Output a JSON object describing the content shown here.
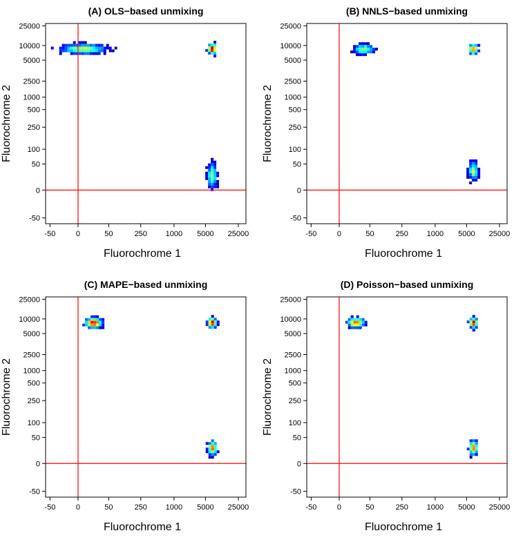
{
  "chart_data": [
    {
      "type": "heatmap",
      "title": "(A) OLS−based unmixing",
      "xlabel": "Fluorochrome 1",
      "ylabel": "Fluorochrome 2",
      "scale": "biexponential",
      "x_ticks": [
        "-50",
        "0",
        "50",
        "250",
        "1000",
        "5000",
        "25000"
      ],
      "y_ticks": [
        "-50",
        "0",
        "50",
        "100",
        "250",
        "500",
        "1000",
        "2500",
        "5000",
        "10000",
        "25000"
      ],
      "reference_lines": {
        "x": 0,
        "y": 0,
        "color": "#ff0000"
      },
      "grid": false,
      "clusters": [
        {
          "x_center": 5,
          "x_spread": 38,
          "y_center": 8500,
          "y_spread": 1600,
          "peak": 0.6
        },
        {
          "x_center": 7000,
          "x_spread": 1200,
          "y_center": 8500,
          "y_spread": 1700,
          "peak": 1.0
        },
        {
          "x_center": 7000,
          "x_spread": 1200,
          "y_center": 20,
          "y_spread": 30,
          "peak": 0.55
        }
      ]
    },
    {
      "type": "heatmap",
      "title": "(B) NNLS−based unmixing",
      "xlabel": "Fluorochrome 1",
      "ylabel": "Fluorochrome 2",
      "scale": "biexponential",
      "x_ticks": [
        "-50",
        "0",
        "50",
        "250",
        "1000",
        "5000",
        "25000"
      ],
      "y_ticks": [
        "-50",
        "0",
        "50",
        "100",
        "250",
        "500",
        "1000",
        "2500",
        "5000",
        "10000",
        "25000"
      ],
      "reference_lines": {
        "x": 0,
        "y": 0,
        "color": "#ff0000"
      },
      "grid": false,
      "clusters": [
        {
          "x_center": 35,
          "x_spread": 25,
          "y_center": 8300,
          "y_spread": 1400,
          "peak": 0.6
        },
        {
          "x_center": 7000,
          "x_spread": 1200,
          "y_center": 8300,
          "y_spread": 1700,
          "peak": 0.85
        },
        {
          "x_center": 7000,
          "x_spread": 1200,
          "y_center": 30,
          "y_spread": 22,
          "peak": 0.6
        }
      ]
    },
    {
      "type": "heatmap",
      "title": "(C) MAPE−based unmixing",
      "xlabel": "Fluorochrome 1",
      "ylabel": "Fluorochrome 2",
      "scale": "biexponential",
      "x_ticks": [
        "-50",
        "0",
        "50",
        "250",
        "1000",
        "5000",
        "25000"
      ],
      "y_ticks": [
        "-50",
        "0",
        "50",
        "100",
        "250",
        "500",
        "1000",
        "2500",
        "5000",
        "10000",
        "25000"
      ],
      "reference_lines": {
        "x": 0,
        "y": 0,
        "color": "#ff0000"
      },
      "grid": false,
      "clusters": [
        {
          "x_center": 18,
          "x_spread": 14,
          "y_center": 8300,
          "y_spread": 1500,
          "peak": 0.95
        },
        {
          "x_center": 7000,
          "x_spread": 1100,
          "y_center": 8300,
          "y_spread": 1600,
          "peak": 1.0
        },
        {
          "x_center": 7000,
          "x_spread": 1100,
          "y_center": 22,
          "y_spread": 14,
          "peak": 0.8
        }
      ]
    },
    {
      "type": "heatmap",
      "title": "(D) Poisson−based unmixing",
      "xlabel": "Fluorochrome 1",
      "ylabel": "Fluorochrome 2",
      "scale": "biexponential",
      "x_ticks": [
        "-50",
        "0",
        "50",
        "250",
        "1000",
        "5000",
        "25000"
      ],
      "y_ticks": [
        "-50",
        "0",
        "50",
        "100",
        "250",
        "500",
        "1000",
        "2500",
        "5000",
        "10000",
        "25000"
      ],
      "reference_lines": {
        "x": 0,
        "y": 0,
        "color": "#ff0000"
      },
      "grid": false,
      "clusters": [
        {
          "x_center": 20,
          "x_spread": 14,
          "y_center": 8300,
          "y_spread": 1500,
          "peak": 0.85
        },
        {
          "x_center": 7000,
          "x_spread": 1100,
          "y_center": 8300,
          "y_spread": 1600,
          "peak": 1.0
        },
        {
          "x_center": 7000,
          "x_spread": 1100,
          "y_center": 22,
          "y_spread": 14,
          "peak": 0.8
        }
      ]
    }
  ]
}
